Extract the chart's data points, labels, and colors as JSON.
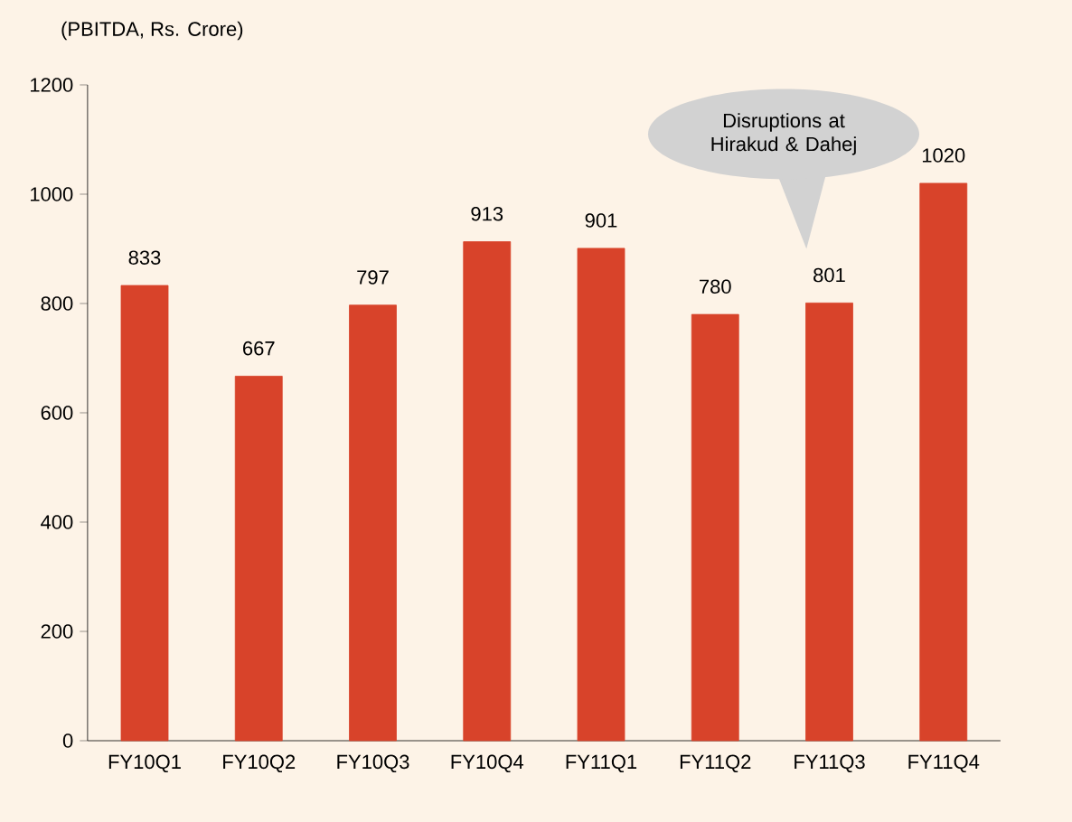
{
  "chart_data": {
    "type": "bar",
    "ylabel": "(PBITDA, Rs. Crore)",
    "categories": [
      "FY10Q1",
      "FY10Q2",
      "FY10Q3",
      "FY10Q4",
      "FY11Q1",
      "FY11Q2",
      "FY11Q3",
      "FY11Q4"
    ],
    "values": [
      833,
      667,
      797,
      913,
      901,
      780,
      801,
      1020
    ],
    "color": "#d8432a",
    "ylim": [
      0,
      1200
    ],
    "yticks": [
      0,
      200,
      400,
      600,
      800,
      1000,
      1200
    ],
    "data_labels": true,
    "grid": false,
    "annotations": [
      "Disruptions at Hirakud & Dahej"
    ]
  }
}
